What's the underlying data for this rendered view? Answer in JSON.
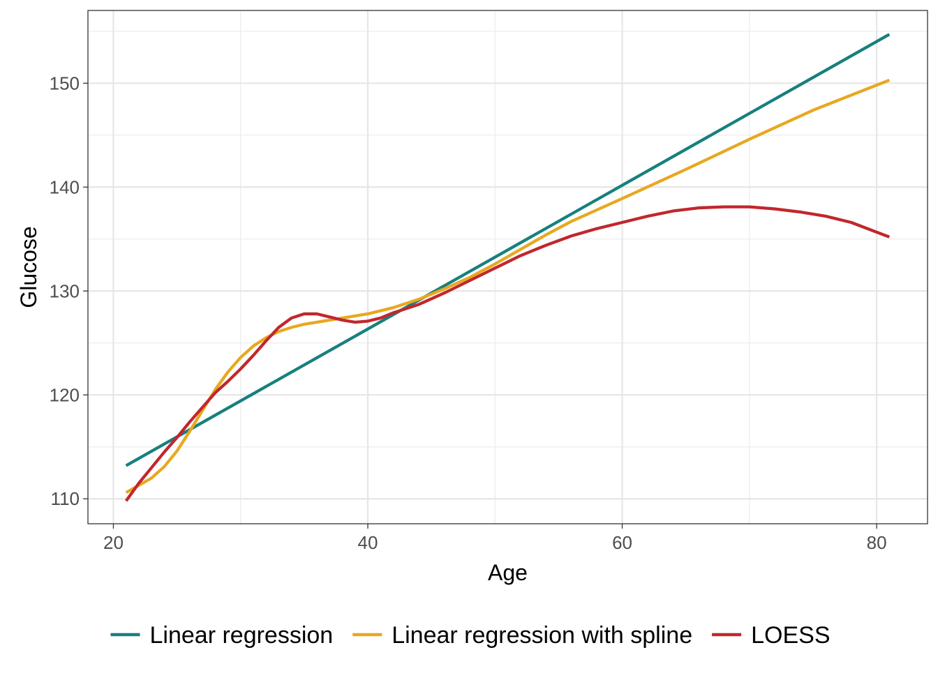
{
  "chart_data": {
    "type": "line",
    "xlabel": "Age",
    "ylabel": "Glucose",
    "xlim": [
      18.0,
      84.0
    ],
    "ylim": [
      107.6,
      157.0
    ],
    "x_ticks": [
      20,
      40,
      60,
      80
    ],
    "y_ticks": [
      110,
      120,
      130,
      140,
      150
    ],
    "x_minor_ticks": [
      30,
      50,
      70
    ],
    "y_minor_ticks": [
      115,
      125,
      135,
      145,
      155
    ],
    "grid": true,
    "legend_position": "bottom",
    "series": [
      {
        "name": "Linear regression",
        "color": "#17807e",
        "x": [
          21,
          81
        ],
        "y": [
          113.2,
          154.7
        ]
      },
      {
        "name": "Linear regression with spline",
        "color": "#e8a820",
        "x": [
          21,
          22,
          23,
          24,
          25,
          26,
          27,
          28,
          29,
          30,
          31,
          32,
          33,
          34,
          35,
          36,
          37,
          38,
          39,
          40,
          42,
          44,
          46,
          48,
          50,
          52,
          54,
          56,
          58,
          60,
          65,
          70,
          75,
          81
        ],
        "y": [
          110.6,
          111.3,
          112.0,
          113.1,
          114.6,
          116.5,
          118.5,
          120.5,
          122.2,
          123.6,
          124.7,
          125.5,
          126.1,
          126.5,
          126.8,
          127.0,
          127.2,
          127.4,
          127.6,
          127.8,
          128.4,
          129.2,
          130.2,
          131.3,
          132.6,
          134.0,
          135.4,
          136.7,
          137.8,
          138.9,
          141.7,
          144.6,
          147.4,
          150.3
        ]
      },
      {
        "name": "LOESS",
        "color": "#c1272d",
        "x": [
          21,
          22,
          23,
          24,
          25,
          26,
          27,
          28,
          29,
          30,
          31,
          32,
          33,
          34,
          35,
          36,
          37,
          38,
          39,
          40,
          41,
          42,
          44,
          46,
          48,
          50,
          52,
          54,
          56,
          58,
          60,
          62,
          64,
          66,
          68,
          70,
          72,
          74,
          76,
          78,
          81
        ],
        "y": [
          109.8,
          111.5,
          113.0,
          114.5,
          115.9,
          117.4,
          118.8,
          120.2,
          121.3,
          122.5,
          123.8,
          125.2,
          126.5,
          127.4,
          127.8,
          127.8,
          127.5,
          127.2,
          127.0,
          127.1,
          127.4,
          127.9,
          128.7,
          129.8,
          131.0,
          132.2,
          133.4,
          134.4,
          135.3,
          136.0,
          136.6,
          137.2,
          137.7,
          138.0,
          138.1,
          138.1,
          137.9,
          137.6,
          137.2,
          136.6,
          135.2
        ]
      }
    ]
  }
}
